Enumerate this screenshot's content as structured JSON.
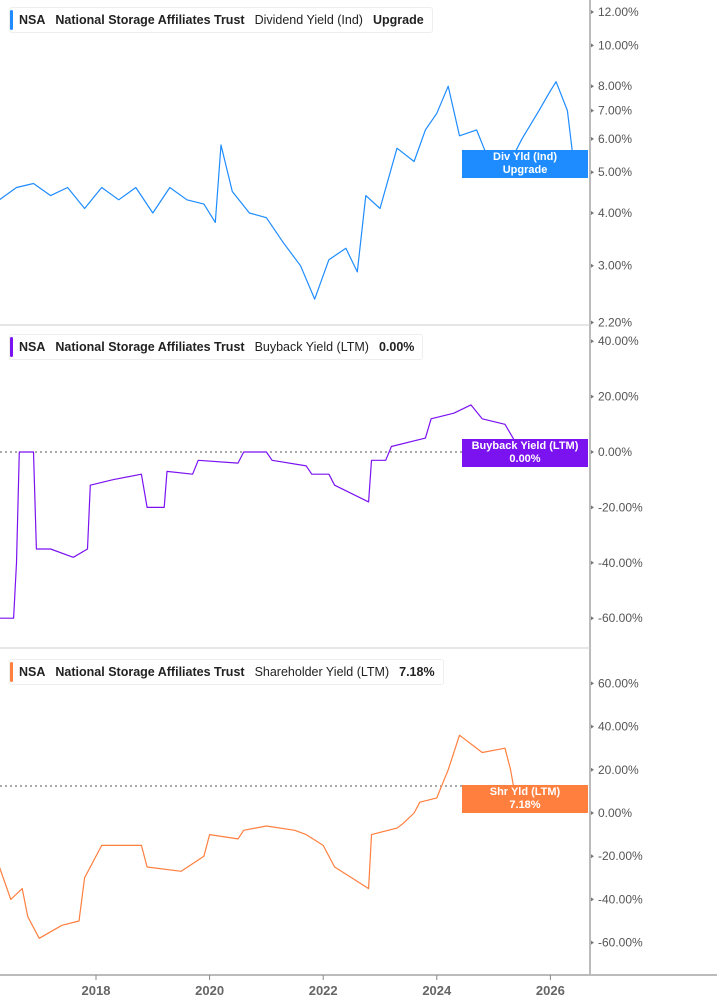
{
  "chart_data": [
    {
      "type": "line",
      "ticker": "NSA",
      "company": "National Storage Affiliates Trust",
      "metric": "Dividend Yield (Ind)",
      "value_label": "Upgrade",
      "tag": [
        "Div Yld (Ind)",
        "Upgrade"
      ],
      "color": "#1e8cff",
      "scale": "log",
      "ylim": [
        2.2,
        12.5
      ],
      "yticks": [
        {
          "v": 12,
          "l": "12.00%"
        },
        {
          "v": 10,
          "l": "10.00%"
        },
        {
          "v": 8,
          "l": "8.00%"
        },
        {
          "v": 7,
          "l": "7.00%"
        },
        {
          "v": 6,
          "l": "6.00%"
        },
        {
          "v": 5,
          "l": "5.00%"
        },
        {
          "v": 4,
          "l": "4.00%"
        },
        {
          "v": 3,
          "l": "3.00%"
        },
        {
          "v": 2.2,
          "l": "2.20%"
        }
      ],
      "points": [
        [
          2016.3,
          4.3
        ],
        [
          2016.6,
          4.6
        ],
        [
          2016.9,
          4.7
        ],
        [
          2017.2,
          4.4
        ],
        [
          2017.5,
          4.6
        ],
        [
          2017.8,
          4.1
        ],
        [
          2018.1,
          4.6
        ],
        [
          2018.4,
          4.3
        ],
        [
          2018.7,
          4.6
        ],
        [
          2019.0,
          4.0
        ],
        [
          2019.3,
          4.6
        ],
        [
          2019.6,
          4.3
        ],
        [
          2019.9,
          4.2
        ],
        [
          2020.1,
          3.8
        ],
        [
          2020.2,
          5.8
        ],
        [
          2020.4,
          4.5
        ],
        [
          2020.7,
          4.0
        ],
        [
          2021.0,
          3.9
        ],
        [
          2021.3,
          3.4
        ],
        [
          2021.6,
          3.0
        ],
        [
          2021.85,
          2.5
        ],
        [
          2022.1,
          3.1
        ],
        [
          2022.4,
          3.3
        ],
        [
          2022.6,
          2.9
        ],
        [
          2022.75,
          4.4
        ],
        [
          2023.0,
          4.1
        ],
        [
          2023.3,
          5.7
        ],
        [
          2023.6,
          5.3
        ],
        [
          2023.8,
          6.3
        ],
        [
          2024.0,
          6.9
        ],
        [
          2024.2,
          8.0
        ],
        [
          2024.4,
          6.1
        ],
        [
          2024.7,
          6.3
        ],
        [
          2025.0,
          5.0
        ],
        [
          2025.2,
          5.0
        ],
        [
          2025.5,
          6.0
        ],
        [
          2025.8,
          7.0
        ],
        [
          2026.0,
          7.8
        ],
        [
          2026.1,
          8.2
        ],
        [
          2026.3,
          7.0
        ],
        [
          2026.4,
          5.4
        ]
      ]
    },
    {
      "type": "line",
      "ticker": "NSA",
      "company": "National Storage Affiliates Trust",
      "metric": "Buyback Yield (LTM)",
      "value_label": "0.00%",
      "tag": [
        "Buyback Yield (LTM)",
        "0.00%"
      ],
      "color": "#7b12f0",
      "scale": "linear",
      "ylim": [
        -65,
        45
      ],
      "yticks": [
        {
          "v": 40,
          "l": "40.00%"
        },
        {
          "v": 20,
          "l": "20.00%"
        },
        {
          "v": 0,
          "l": "0.00%"
        },
        {
          "v": -20,
          "l": "-20.00%"
        },
        {
          "v": -40,
          "l": "-40.00%"
        },
        {
          "v": -60,
          "l": "-60.00%"
        }
      ],
      "points": [
        [
          2016.3,
          -60
        ],
        [
          2016.55,
          -60
        ],
        [
          2016.6,
          -40
        ],
        [
          2016.65,
          0
        ],
        [
          2016.9,
          0
        ],
        [
          2016.95,
          -35
        ],
        [
          2017.2,
          -35
        ],
        [
          2017.6,
          -38
        ],
        [
          2017.85,
          -35
        ],
        [
          2017.9,
          -12
        ],
        [
          2018.3,
          -10
        ],
        [
          2018.8,
          -8
        ],
        [
          2018.9,
          -20
        ],
        [
          2019.2,
          -20
        ],
        [
          2019.25,
          -7
        ],
        [
          2019.7,
          -8
        ],
        [
          2019.8,
          -3
        ],
        [
          2020.5,
          -4
        ],
        [
          2020.6,
          0
        ],
        [
          2021.0,
          0
        ],
        [
          2021.1,
          -3
        ],
        [
          2021.7,
          -5
        ],
        [
          2021.8,
          -8
        ],
        [
          2022.1,
          -8
        ],
        [
          2022.2,
          -12
        ],
        [
          2022.5,
          -15
        ],
        [
          2022.8,
          -18
        ],
        [
          2022.85,
          -3
        ],
        [
          2023.1,
          -3
        ],
        [
          2023.2,
          2
        ],
        [
          2023.8,
          5
        ],
        [
          2023.9,
          12
        ],
        [
          2024.3,
          14
        ],
        [
          2024.6,
          17
        ],
        [
          2024.8,
          12
        ],
        [
          2025.2,
          10
        ],
        [
          2025.4,
          3
        ],
        [
          2025.6,
          0
        ],
        [
          2026.3,
          0
        ]
      ]
    },
    {
      "type": "line",
      "ticker": "NSA",
      "company": "National Storage Affiliates Trust",
      "metric": "Shareholder Yield (LTM)",
      "value_label": "7.18%",
      "tag": [
        "Shr Yld (LTM)",
        "7.18%"
      ],
      "color": "#ff7f3f",
      "scale": "linear",
      "ylim": [
        -68,
        75
      ],
      "yticks": [
        {
          "v": 60,
          "l": "60.00%"
        },
        {
          "v": 40,
          "l": "40.00%"
        },
        {
          "v": 20,
          "l": "20.00%"
        },
        {
          "v": 0,
          "l": "0.00%"
        },
        {
          "v": -20,
          "l": "-20.00%"
        },
        {
          "v": -40,
          "l": "-40.00%"
        },
        {
          "v": -60,
          "l": "-60.00%"
        }
      ],
      "points": [
        [
          2016.3,
          -25
        ],
        [
          2016.5,
          -40
        ],
        [
          2016.7,
          -35
        ],
        [
          2016.8,
          -48
        ],
        [
          2017.0,
          -58
        ],
        [
          2017.4,
          -52
        ],
        [
          2017.7,
          -50
        ],
        [
          2017.8,
          -30
        ],
        [
          2018.1,
          -15
        ],
        [
          2018.8,
          -15
        ],
        [
          2018.9,
          -25
        ],
        [
          2019.5,
          -27
        ],
        [
          2019.9,
          -20
        ],
        [
          2020.0,
          -10
        ],
        [
          2020.5,
          -12
        ],
        [
          2020.6,
          -8
        ],
        [
          2021.0,
          -6
        ],
        [
          2021.5,
          -8
        ],
        [
          2021.7,
          -10
        ],
        [
          2022.0,
          -15
        ],
        [
          2022.2,
          -25
        ],
        [
          2022.5,
          -30
        ],
        [
          2022.8,
          -35
        ],
        [
          2022.85,
          -10
        ],
        [
          2023.3,
          -7
        ],
        [
          2023.4,
          -5
        ],
        [
          2023.6,
          0
        ],
        [
          2023.7,
          5
        ],
        [
          2024.0,
          7
        ],
        [
          2024.2,
          20
        ],
        [
          2024.4,
          36
        ],
        [
          2024.8,
          28
        ],
        [
          2025.2,
          30
        ],
        [
          2025.3,
          20
        ],
        [
          2025.4,
          5
        ],
        [
          2025.8,
          6
        ],
        [
          2026.0,
          9
        ],
        [
          2026.3,
          7
        ]
      ]
    }
  ],
  "x_axis": {
    "ticks": [
      "2018",
      "2020",
      "2022",
      "2024",
      "2026"
    ],
    "values": [
      2018,
      2020,
      2022,
      2024,
      2026
    ]
  }
}
